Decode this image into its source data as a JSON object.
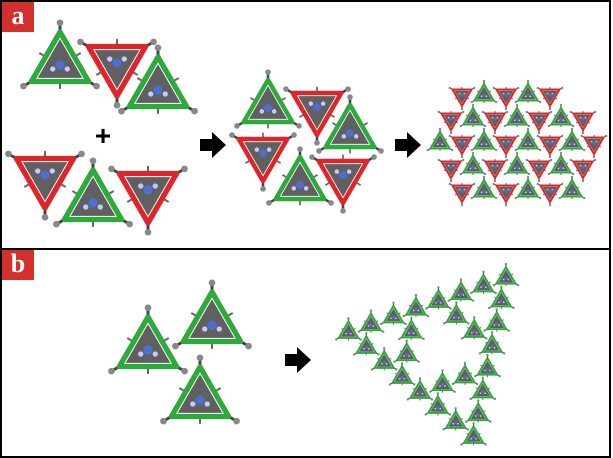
{
  "panels": [
    {
      "label": "a"
    },
    {
      "label": "b"
    }
  ],
  "plus_sign": "+",
  "colors": {
    "green": "#2eaa3c",
    "red": "#e0242a",
    "label_bg": "#d32f2f",
    "molecule": "#444444",
    "arrow": "#000000"
  },
  "icons": [
    "arrow-right-icon",
    "plus-icon"
  ]
}
